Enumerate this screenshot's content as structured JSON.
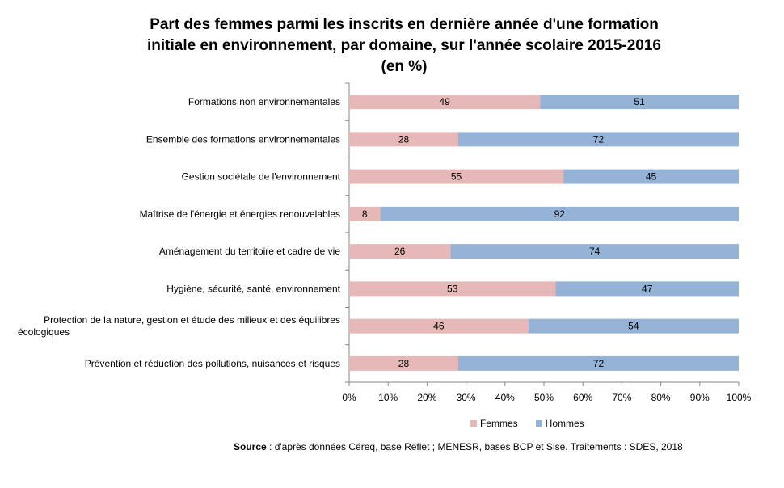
{
  "chart_data": {
    "type": "bar",
    "orientation": "horizontal",
    "stacked": true,
    "title_lines": [
      "Part des femmes parmi les inscrits en dernière année d'une formation",
      "initiale en environnement, par domaine, sur l'année scolaire 2015-2016",
      "(en %)"
    ],
    "categories": [
      "Formations non environnementales",
      "Ensemble des formations environnementales",
      "Gestion sociétale de l'environnement",
      "Maîtrise de l'énergie et énergies renouvelables",
      "Aménagement du territoire et cadre de vie",
      "Hygiène, sécurité, santé, environnement",
      "Protection de la nature, gestion et étude des milieux et des équilibres écologiques",
      "Prévention et réduction des pollutions, nuisances et risques"
    ],
    "category_lines": [
      [
        "Formations non environnementales"
      ],
      [
        "Ensemble des formations environnementales"
      ],
      [
        "Gestion sociétale de l'environnement"
      ],
      [
        "Maîtrise de l'énergie et énergies renouvelables"
      ],
      [
        "Aménagement du territoire et cadre de vie"
      ],
      [
        "Hygiène, sécurité, santé, environnement"
      ],
      [
        "Protection de la nature, gestion et étude des milieux et des équilibres",
        "écologiques"
      ],
      [
        "Prévention et réduction des pollutions, nuisances et risques"
      ]
    ],
    "series": [
      {
        "name": "Femmes",
        "color": "#e6b9b8",
        "values": [
          49,
          28,
          55,
          8,
          26,
          53,
          46,
          28
        ]
      },
      {
        "name": "Hommes",
        "color": "#95b3d7",
        "values": [
          51,
          72,
          45,
          92,
          74,
          47,
          54,
          72
        ]
      }
    ],
    "xlim": [
      0,
      100
    ],
    "x_ticks": [
      "0%",
      "10%",
      "20%",
      "30%",
      "40%",
      "50%",
      "60%",
      "70%",
      "80%",
      "90%",
      "100%"
    ],
    "grid": false,
    "legend_position": "bottom"
  },
  "source": {
    "label": "Source",
    "text": " : d'après données Céreq, base Reflet ; MENESR, bases BCP et Sise. Traitements : SDES, 2018"
  }
}
